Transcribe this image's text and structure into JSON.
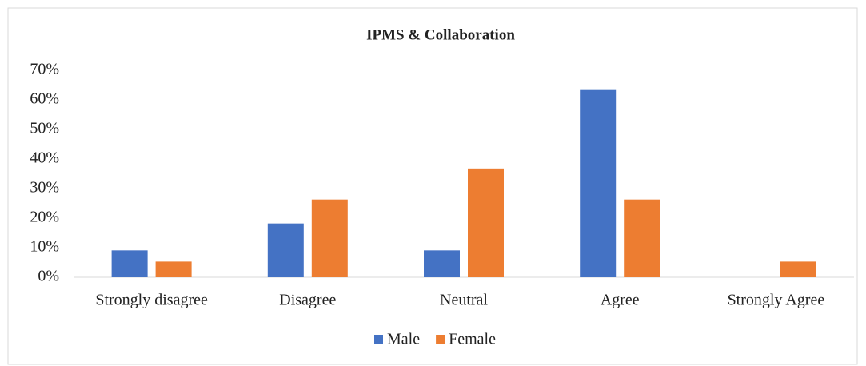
{
  "chart_data": {
    "type": "bar",
    "title": "IPMS & Collaboration",
    "categories": [
      "Strongly disagree",
      "Disagree",
      "Neutral",
      "Agree",
      "Strongly Agree"
    ],
    "series": [
      {
        "name": "Male",
        "color": "#4472c4",
        "values": [
          9.1,
          18.2,
          9.1,
          63.6,
          0
        ]
      },
      {
        "name": "Female",
        "color": "#ed7d31",
        "values": [
          5.3,
          26.3,
          36.8,
          26.3,
          5.3
        ]
      }
    ],
    "ylim": [
      0,
      70
    ],
    "yticks": [
      {
        "value": 0,
        "label": "0%"
      },
      {
        "value": 10,
        "label": "10%"
      },
      {
        "value": 20,
        "label": "20%"
      },
      {
        "value": 30,
        "label": "30%"
      },
      {
        "value": 40,
        "label": "40%"
      },
      {
        "value": 50,
        "label": "50%"
      },
      {
        "value": 60,
        "label": "60%"
      },
      {
        "value": 70,
        "label": "70%"
      }
    ],
    "legend": "bottom"
  }
}
